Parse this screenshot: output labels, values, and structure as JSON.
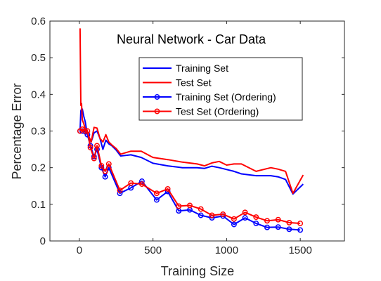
{
  "chart_data": {
    "type": "line",
    "title": "Neural Network - Car Data",
    "xlabel": "Training Size",
    "ylabel": "Percentage Error",
    "xlim": [
      -200,
      1800
    ],
    "ylim": [
      0,
      0.6
    ],
    "xticks": [
      0,
      500,
      1000,
      1500
    ],
    "yticks": [
      0,
      0.1,
      0.2,
      0.3,
      0.4,
      0.5,
      0.6
    ],
    "xtick_labels": [
      "0",
      "500",
      "1000",
      "1500"
    ],
    "ytick_labels": [
      "0",
      "0.1",
      "0.2",
      "0.3",
      "0.4",
      "0.5",
      "0.6"
    ],
    "grid": false,
    "legend_position": "upper-center",
    "series": [
      {
        "name": "Training Set",
        "color": "#0000ff",
        "marker": "none",
        "x": [
          5,
          10,
          15,
          20,
          30,
          40,
          50,
          60,
          80,
          100,
          120,
          140,
          160,
          180,
          200,
          220,
          250,
          280,
          350,
          420,
          500,
          600,
          700,
          800,
          850,
          900,
          950,
          1000,
          1050,
          1100,
          1200,
          1300,
          1350,
          1400,
          1450,
          1520
        ],
        "y": [
          0.3,
          0.355,
          0.36,
          0.36,
          0.34,
          0.325,
          0.3,
          0.285,
          0.27,
          0.295,
          0.3,
          0.28,
          0.25,
          0.275,
          0.265,
          0.26,
          0.248,
          0.232,
          0.235,
          0.228,
          0.212,
          0.205,
          0.2,
          0.2,
          0.198,
          0.204,
          0.2,
          0.195,
          0.19,
          0.183,
          0.178,
          0.178,
          0.175,
          0.168,
          0.128,
          0.155
        ]
      },
      {
        "name": "Test Set",
        "color": "#ff0000",
        "marker": "none",
        "x": [
          5,
          10,
          15,
          20,
          30,
          40,
          50,
          60,
          80,
          100,
          120,
          140,
          160,
          180,
          200,
          220,
          250,
          280,
          350,
          420,
          500,
          600,
          700,
          800,
          850,
          900,
          950,
          1000,
          1050,
          1100,
          1200,
          1300,
          1350,
          1400,
          1450,
          1520
        ],
        "y": [
          0.58,
          0.37,
          0.375,
          0.33,
          0.32,
          0.305,
          0.3,
          0.29,
          0.27,
          0.31,
          0.308,
          0.28,
          0.27,
          0.29,
          0.27,
          0.262,
          0.252,
          0.237,
          0.245,
          0.245,
          0.228,
          0.222,
          0.215,
          0.21,
          0.205,
          0.213,
          0.217,
          0.207,
          0.21,
          0.21,
          0.19,
          0.2,
          0.196,
          0.19,
          0.13,
          0.18
        ]
      },
      {
        "name": "Training Set (Ordering)",
        "color": "#0000ff",
        "marker": "circle",
        "x": [
          5,
          20,
          40,
          55,
          75,
          100,
          120,
          150,
          175,
          200,
          275,
          350,
          425,
          525,
          600,
          675,
          750,
          825,
          900,
          975,
          1050,
          1125,
          1200,
          1275,
          1350,
          1425,
          1500
        ],
        "y": [
          0.3,
          0.3,
          0.298,
          0.29,
          0.26,
          0.23,
          0.25,
          0.2,
          0.175,
          0.2,
          0.13,
          0.145,
          0.163,
          0.112,
          0.135,
          0.082,
          0.085,
          0.07,
          0.063,
          0.068,
          0.045,
          0.063,
          0.048,
          0.037,
          0.038,
          0.032,
          0.03
        ]
      },
      {
        "name": "Test Set (Ordering)",
        "color": "#ff0000",
        "marker": "circle",
        "x": [
          5,
          20,
          40,
          55,
          75,
          100,
          120,
          150,
          175,
          200,
          275,
          350,
          425,
          525,
          600,
          675,
          750,
          825,
          900,
          975,
          1050,
          1125,
          1200,
          1275,
          1350,
          1425,
          1500
        ],
        "y": [
          0.3,
          0.305,
          0.3,
          0.3,
          0.255,
          0.225,
          0.26,
          0.205,
          0.19,
          0.21,
          0.138,
          0.158,
          0.155,
          0.13,
          0.142,
          0.095,
          0.097,
          0.087,
          0.07,
          0.073,
          0.06,
          0.078,
          0.065,
          0.055,
          0.058,
          0.05,
          0.048
        ]
      }
    ]
  }
}
